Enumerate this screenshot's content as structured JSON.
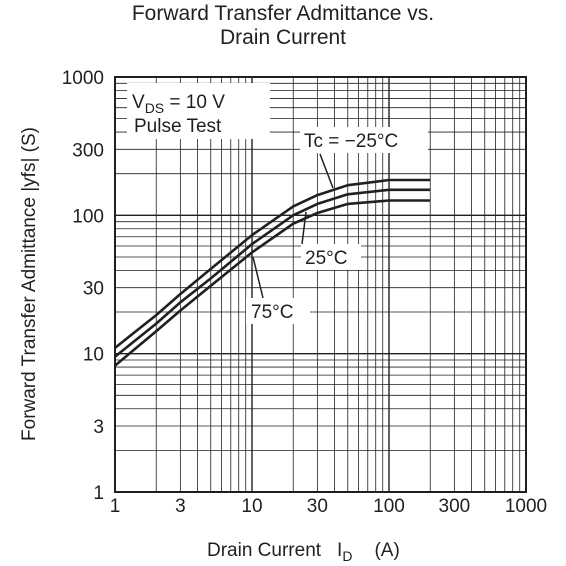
{
  "chart_data": {
    "type": "line",
    "title": [
      "Forward Transfer Admittance vs.",
      "Drain Current"
    ],
    "xlabel": {
      "main": "Drain Current",
      "symbol": "I",
      "sub": "D",
      "unit": "(A)"
    },
    "ylabel": "Forward Transfer Admittance |yfs|  (S)",
    "x_scale": "log",
    "y_scale": "log",
    "xlim": [
      1,
      1000
    ],
    "ylim": [
      1,
      1000
    ],
    "x_tick_labels": [
      "1",
      "3",
      "10",
      "30",
      "100",
      "300",
      "1000"
    ],
    "y_tick_labels": [
      "1",
      "3",
      "10",
      "30",
      "100",
      "300",
      "1000"
    ],
    "grid": true,
    "conditions": {
      "line1_prefix": "V",
      "line1_sub": "DS",
      "line1_suffix": " = 10 V",
      "line2": "Pulse Test"
    },
    "series": [
      {
        "name": "Tc = −25°C",
        "x": [
          1,
          2,
          3,
          5,
          10,
          20,
          30,
          50,
          100,
          200
        ],
        "y": [
          11,
          19,
          27,
          41,
          72,
          116,
          140,
          165,
          180,
          180
        ]
      },
      {
        "name": "25°C",
        "x": [
          1,
          2,
          3,
          5,
          10,
          20,
          30,
          50,
          100,
          200
        ],
        "y": [
          9.5,
          16.5,
          23.5,
          35,
          62,
          100,
          121,
          142,
          153,
          153
        ]
      },
      {
        "name": "75°C",
        "x": [
          1,
          2,
          3,
          5,
          10,
          20,
          30,
          50,
          100,
          200
        ],
        "y": [
          8.2,
          14.5,
          20.5,
          31,
          54,
          87,
          104,
          121,
          128,
          128
        ]
      }
    ]
  }
}
